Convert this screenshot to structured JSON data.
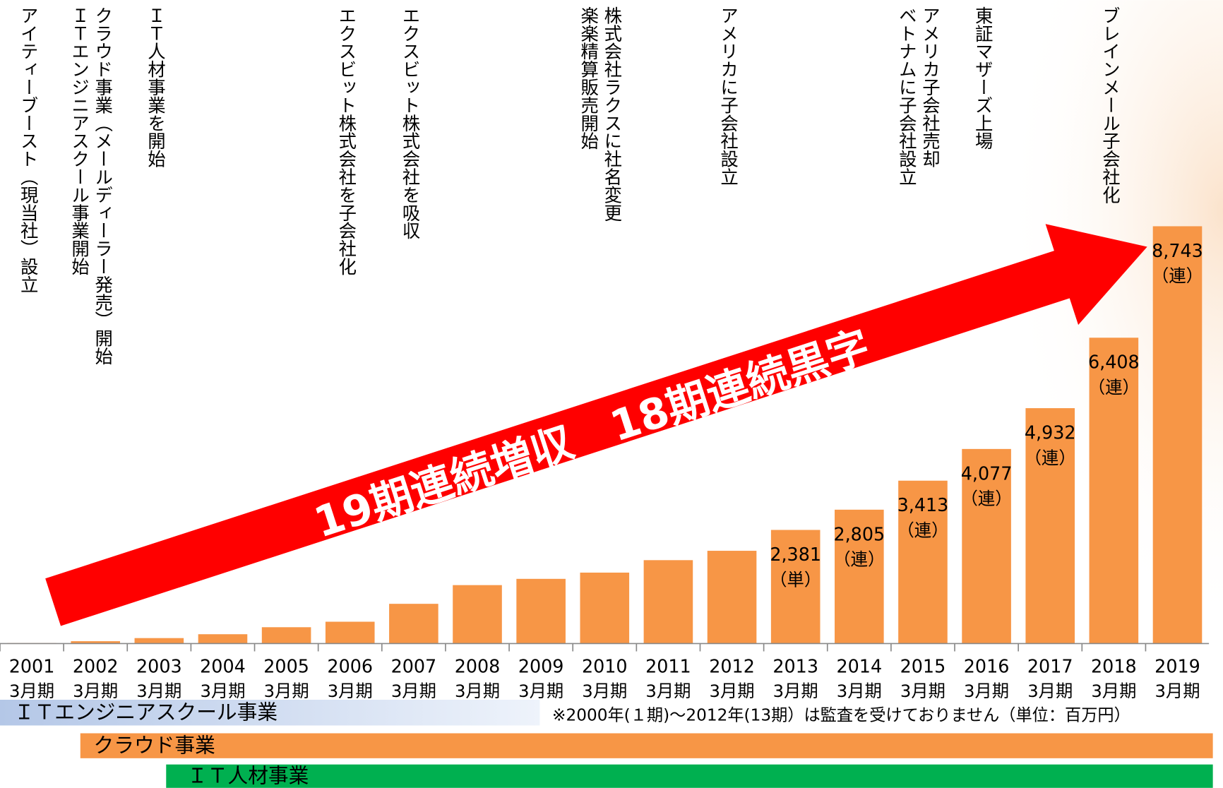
{
  "chart_data": {
    "type": "bar",
    "headline": "19期連続増収　18期連続黒字",
    "categories": [
      "2001",
      "2002",
      "2003",
      "2004",
      "2005",
      "2006",
      "2007",
      "2008",
      "2009",
      "2010",
      "2011",
      "2012",
      "2013",
      "2014",
      "2015",
      "2016",
      "2017",
      "2018",
      "2019"
    ],
    "category_sublabel": "3月期",
    "values": [
      10,
      50,
      115,
      196,
      343,
      458,
      833,
      1225,
      1356,
      1487,
      1748,
      1944,
      2381,
      2805,
      3413,
      4077,
      4932,
      6408,
      8743
    ],
    "value_labels": [
      null,
      null,
      null,
      null,
      null,
      null,
      null,
      null,
      null,
      null,
      null,
      null,
      "2,381",
      "2,805",
      "3,413",
      "4,077",
      "4,932",
      "6,408",
      "8,743"
    ],
    "label_notes": [
      null,
      null,
      null,
      null,
      null,
      null,
      null,
      null,
      null,
      null,
      null,
      null,
      "（単）",
      "（連）",
      "（連）",
      "（連）",
      "（連）",
      "（連）",
      "（連）"
    ],
    "color": "#f79646",
    "ylim": [
      0,
      10000
    ],
    "events": [
      [
        "アイティーブースト（現当社）設立"
      ],
      [
        "クラウド事業（メールディーラー発売）開始",
        "ＩＴエンジニアスクール事業開始"
      ],
      [
        "ＩＴ人材事業を開始"
      ],
      null,
      null,
      [
        "エクスビット株式会社を子会社化"
      ],
      [
        "エクスビット株式会社を吸収"
      ],
      null,
      null,
      [
        "株式会社ラクスに社名変更",
        "楽楽精算販売開始"
      ],
      null,
      [
        "アメリカに子会社設立"
      ],
      null,
      null,
      [
        "アメリカ子会社売却",
        "ベトナムに子会社設立"
      ],
      [
        "東証マザーズ上場"
      ],
      null,
      [
        "ブレインメール子会社化"
      ],
      null
    ],
    "note": "※2000年(１期)～2012年(13期）は監査を受けておりません（単位：百万円）",
    "businesses": [
      {
        "name": "ＩＴエンジニアスクール事業",
        "color": "#b4c7e7"
      },
      {
        "name": "クラウド事業",
        "color": "#f79646"
      },
      {
        "name": "ＩＴ人材事業",
        "color": "#00b050"
      }
    ]
  }
}
